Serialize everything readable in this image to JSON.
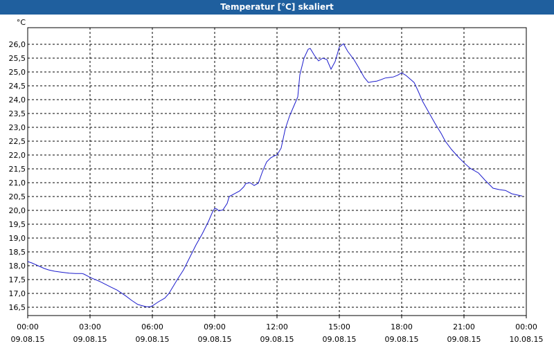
{
  "window": {
    "title": "Temperatur [°C] skaliert"
  },
  "colors": {
    "titlebar": "#1f5f9e",
    "line": "#1a1acc",
    "grid": "#000000"
  },
  "chart_data": {
    "type": "line",
    "title": "Temperatur [°C] skaliert",
    "ylabel": "°C",
    "xlabel": "",
    "ylim": [
      16.2,
      26.6
    ],
    "xlim": [
      0,
      24
    ],
    "grid": true,
    "y_ticks": [
      "16,5",
      "17,0",
      "17,5",
      "18,0",
      "18,5",
      "19,0",
      "19,5",
      "20,0",
      "20,5",
      "21,0",
      "21,5",
      "22,0",
      "22,5",
      "23,0",
      "23,5",
      "24,0",
      "24,5",
      "25,0",
      "25,5",
      "26,0"
    ],
    "y_tick_values": [
      16.5,
      17.0,
      17.5,
      18.0,
      18.5,
      19.0,
      19.5,
      20.0,
      20.5,
      21.0,
      21.5,
      22.0,
      22.5,
      23.0,
      23.5,
      24.0,
      24.5,
      25.0,
      25.5,
      26.0
    ],
    "x_ticks": [
      {
        "time": "00:00",
        "date": "09.08.15"
      },
      {
        "time": "03:00",
        "date": "09.08.15"
      },
      {
        "time": "06:00",
        "date": "09.08.15"
      },
      {
        "time": "09:00",
        "date": "09.08.15"
      },
      {
        "time": "12:00",
        "date": "09.08.15"
      },
      {
        "time": "15:00",
        "date": "09.08.15"
      },
      {
        "time": "18:00",
        "date": "09.08.15"
      },
      {
        "time": "21:00",
        "date": "09.08.15"
      },
      {
        "time": "00:00",
        "date": "10.08.15"
      }
    ],
    "x_tick_values": [
      0,
      3,
      6,
      9,
      12,
      15,
      18,
      21,
      24
    ],
    "series": [
      {
        "x": [
          0,
          0.2,
          0.5,
          0.8,
          1.0,
          1.3,
          1.6,
          2.0,
          2.3,
          2.6,
          2.7,
          3.0,
          3.5,
          4.0,
          4.3,
          4.7,
          5.0,
          5.3,
          5.7,
          5.9,
          6.0,
          6.3,
          6.6,
          6.8,
          7.0,
          7.2,
          7.5,
          7.8,
          8.1,
          8.4,
          8.7,
          8.9,
          9.0,
          9.1,
          9.2,
          9.4,
          9.6,
          9.7,
          10.0,
          10.2,
          10.4,
          10.5,
          10.7,
          10.9,
          11.1,
          11.3,
          11.5,
          11.7,
          11.9,
          12.0,
          12.2,
          12.4,
          12.6,
          12.8,
          13.0,
          13.1,
          13.3,
          13.5,
          13.6,
          13.8,
          14.0,
          14.2,
          14.4,
          14.6,
          14.8,
          15.0,
          15.2,
          15.4,
          15.6,
          15.7,
          15.9,
          16.2,
          16.4,
          16.6,
          16.8,
          17.0,
          17.2,
          17.4,
          17.6,
          17.8,
          18.0,
          18.2,
          18.4,
          18.6,
          18.8,
          19.0,
          19.3,
          19.6,
          19.9,
          20.1,
          20.4,
          20.7,
          21.0,
          21.3,
          21.7,
          22.0,
          22.4,
          22.7,
          23.0,
          23.3,
          23.6,
          23.8
        ],
        "y": [
          18.15,
          18.1,
          18.0,
          17.9,
          17.85,
          17.8,
          17.77,
          17.73,
          17.72,
          17.72,
          17.7,
          17.58,
          17.42,
          17.23,
          17.12,
          16.92,
          16.75,
          16.6,
          16.52,
          16.52,
          16.55,
          16.7,
          16.83,
          17.0,
          17.25,
          17.5,
          17.85,
          18.3,
          18.75,
          19.15,
          19.6,
          19.95,
          20.07,
          20.05,
          19.98,
          20.02,
          20.25,
          20.5,
          20.62,
          20.7,
          20.85,
          20.97,
          21.0,
          20.9,
          20.98,
          21.4,
          21.75,
          21.9,
          21.98,
          22.0,
          22.25,
          22.95,
          23.4,
          23.75,
          24.1,
          24.9,
          25.5,
          25.82,
          25.85,
          25.6,
          25.4,
          25.5,
          25.45,
          25.1,
          25.38,
          25.9,
          26.02,
          25.75,
          25.55,
          25.45,
          25.2,
          24.8,
          24.62,
          24.65,
          24.67,
          24.72,
          24.78,
          24.8,
          24.82,
          24.88,
          24.97,
          24.88,
          24.75,
          24.62,
          24.3,
          23.95,
          23.55,
          23.15,
          22.78,
          22.5,
          22.2,
          21.95,
          21.72,
          21.52,
          21.35,
          21.1,
          20.8,
          20.75,
          20.72,
          20.6,
          20.55,
          20.52
        ]
      }
    ]
  }
}
